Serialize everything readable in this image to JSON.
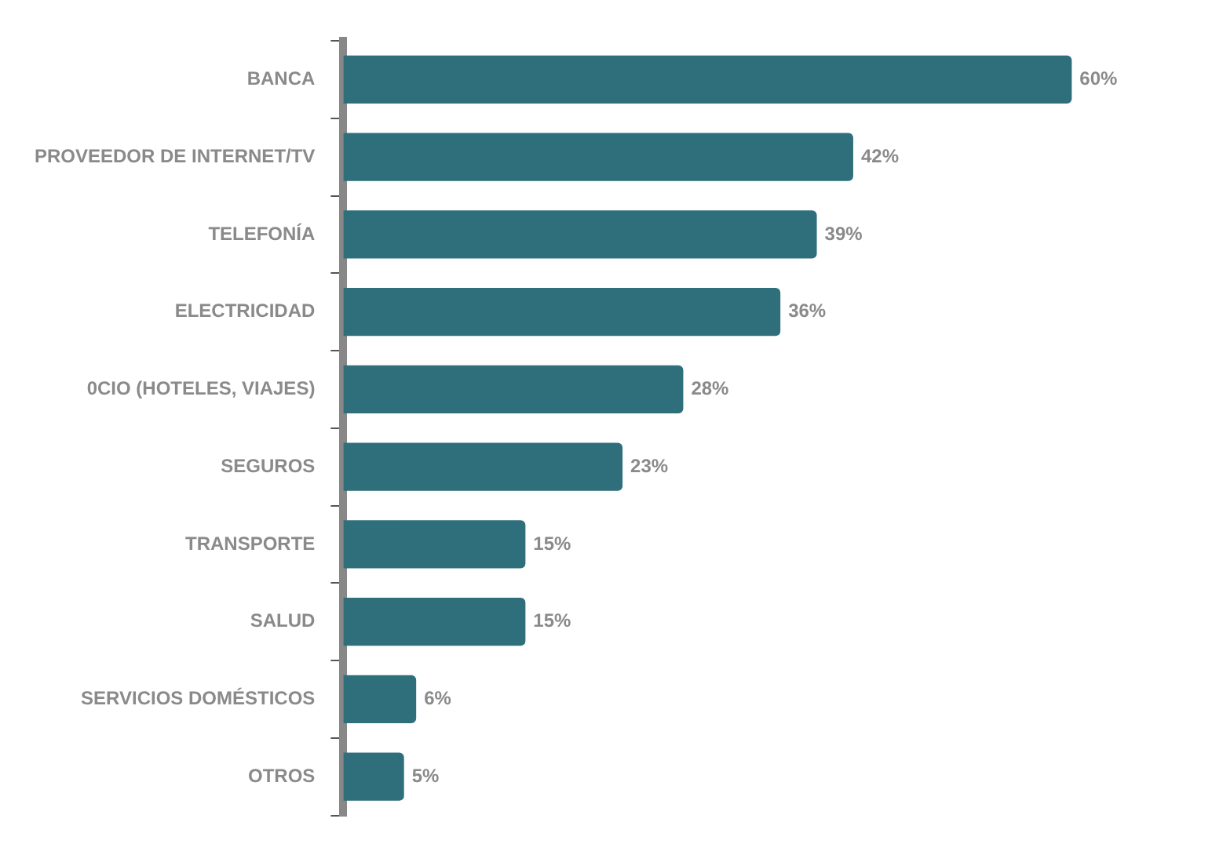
{
  "chart_data": {
    "type": "bar",
    "orientation": "horizontal",
    "categories": [
      "BANCA",
      "PROVEEDOR DE INTERNET/TV",
      "TELEFONÍA",
      "ELECTRICIDAD",
      "0CIO (HOTELES, VIAJES)",
      "SEGUROS",
      "TRANSPORTE",
      "SALUD",
      "SERVICIOS DOMÉSTICOS",
      "OTROS"
    ],
    "values": [
      60,
      42,
      39,
      36,
      28,
      23,
      15,
      15,
      6,
      5
    ],
    "value_labels": [
      "60%",
      "42%",
      "39%",
      "36%",
      "28%",
      "23%",
      "15%",
      "15%",
      "6%",
      "5%"
    ],
    "color": "#2f6f7b",
    "grid": false,
    "legend": false
  }
}
